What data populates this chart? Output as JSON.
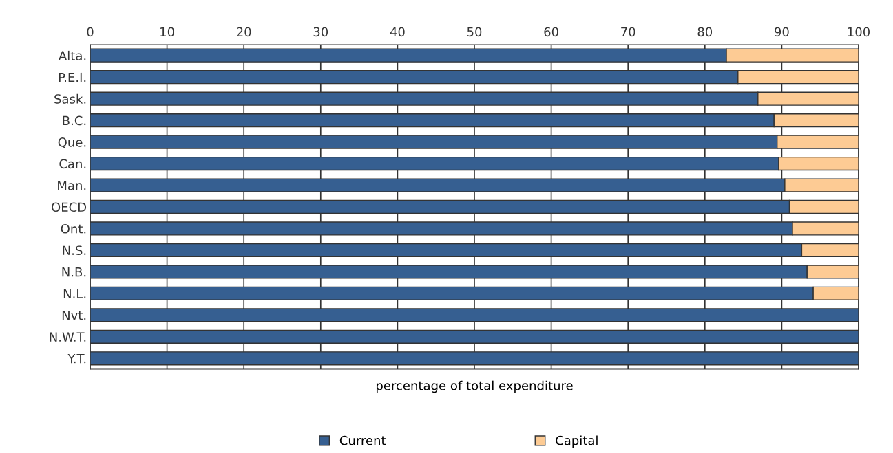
{
  "chart_data": {
    "type": "bar",
    "orientation": "horizontal",
    "stacked": true,
    "xlabel": "percentage of total expenditure",
    "categories": [
      "Alta.",
      "P.E.I.",
      "Sask.",
      "B.C.",
      "Que.",
      "Can.",
      "Man.",
      "OECD",
      "Ont.",
      "N.S.",
      "N.B.",
      "N.L.",
      "Nvt.",
      "N.W.T.",
      "Y.T."
    ],
    "series": [
      {
        "name": "Current",
        "color": "#365f91",
        "values": [
          82.8,
          84.3,
          86.9,
          89.0,
          89.4,
          89.6,
          90.4,
          91.0,
          91.4,
          92.6,
          93.3,
          94.1,
          100,
          100,
          100
        ]
      },
      {
        "name": "Capital",
        "color": "#fdcb94",
        "values": [
          17.2,
          15.7,
          13.1,
          11.0,
          10.6,
          10.4,
          9.6,
          9.0,
          8.6,
          7.4,
          6.7,
          5.9,
          0,
          0,
          0
        ]
      }
    ],
    "xlim": [
      0,
      100
    ],
    "xticks": [
      0,
      10,
      20,
      30,
      40,
      50,
      60,
      70,
      80,
      90,
      100
    ],
    "grid": "x",
    "legend": "bottom"
  }
}
